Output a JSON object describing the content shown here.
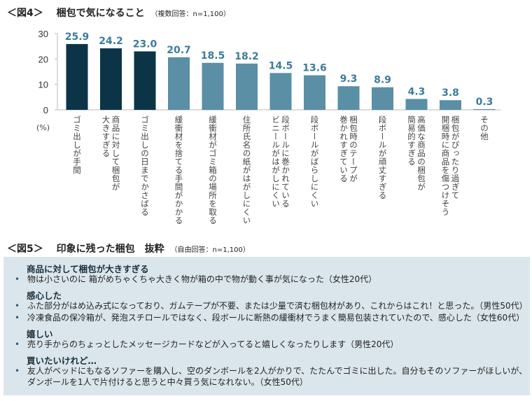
{
  "fig4": {
    "label": "＜図4＞",
    "title": "梱包で気になること",
    "note": "（複数回答：n=1,100）",
    "unit": "(%)"
  },
  "chart_data": {
    "type": "bar",
    "categories": [
      "ゴミ出しが手間",
      "商品に対して梱包が\n大きすぎる",
      "ゴミ出しの日までかさばる",
      "緩衝材を捨てる手間がかかる",
      "緩衝材がゴミ箱の場所を取る",
      "住所氏名の紙がはがしにくい",
      "段ボールに巻かれている\nビニールがはがしにくい",
      "段ボールがばらしにくい",
      "梱包時のテープが\n巻かれすぎている",
      "段ボールが頑丈すぎる",
      "高価な商品の梱包が\n簡易的すぎる",
      "梱包がぴったり過ぎて\n開梱時に商品を傷つけそう",
      "その他"
    ],
    "values": [
      25.9,
      24.2,
      23.0,
      20.7,
      18.5,
      18.2,
      14.5,
      13.6,
      9.3,
      8.9,
      4.3,
      3.8,
      0.3
    ],
    "value_labels": [
      "25.9",
      "24.2",
      "23.0",
      "20.7",
      "18.5",
      "18.2",
      "14.5",
      "13.6",
      "9.3",
      "8.9",
      "4.3",
      "3.8",
      "0.3"
    ],
    "highlight_count": 3,
    "ylim": [
      0,
      30
    ],
    "yticks": [
      0,
      10,
      20,
      30
    ],
    "ylabel": "(%)",
    "grid": false,
    "colors": {
      "highlight": "#0b3547",
      "normal": "#5a8fa6",
      "value_label": "#3a7c9c"
    }
  },
  "fig5": {
    "label": "＜図5＞",
    "title": "印象に残った梱包　抜粋",
    "note": "（自由回答：n=1,100）",
    "sections": [
      {
        "heading": "商品に対して梱包が大きすぎる",
        "items": [
          [
            "物は小さいのに 箱がめちゃくちゃ大きく物が箱の中で物が動く事が気になった（女性20代）"
          ]
        ]
      },
      {
        "heading": "感心した",
        "items": [
          [
            "ふた部分がはめ込み式になっており、ガムテープが不要、または少量で済む梱包材があり、これからはこれ！と思った。（男性50代）"
          ],
          [
            "冷凍食品の保冷箱が、発泡スチロールではなく、段ボールに断熱の緩衝材でうまく簡易包装されていたので、感心した（女性60代）"
          ]
        ]
      },
      {
        "heading": "嬉しい",
        "items": [
          [
            "売り手からのちょっとしたメッセージカードなどが入ってると嬉しくなったりします（男性20代）"
          ]
        ]
      },
      {
        "heading": "買いたいけれど…",
        "items": [
          [
            "友人がベッドにもなるソファーを購入し、空のダンボールを2人がかりで、たたんでゴミに出した。自分もそのソファーがほしいが、",
            "ダンボールを1人で片付けると思うと中々買う気になれない。（女性50代）"
          ]
        ]
      }
    ],
    "bullet": "•"
  }
}
